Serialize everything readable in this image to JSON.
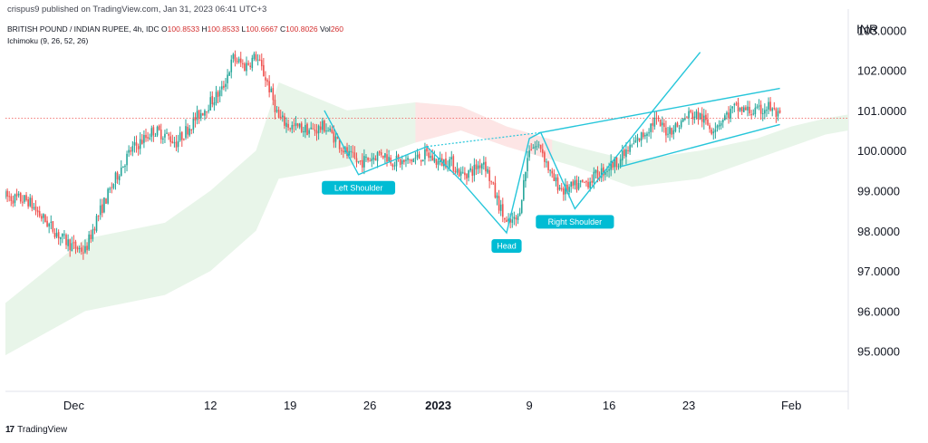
{
  "header": {
    "published": "crispus9 published on TradingView.com, Jan 31, 2023 06:41 UTC+3",
    "symbol": "BRITISH POUND / INDIAN RUPEE, 4h, IDC",
    "ohlc": {
      "o_label": "O",
      "o": "100.8533",
      "h_label": "H",
      "h": "100.8533",
      "l_label": "L",
      "l": "100.6667",
      "c_label": "C",
      "c": "100.8026",
      "vol_label": "Vol",
      "vol": "260"
    },
    "indicator": "Ichimoku (9, 26, 52, 26)",
    "currency": "INR"
  },
  "footer": {
    "brand": "TradingView",
    "logo_text": "17"
  },
  "colors": {
    "up": "#26a69a",
    "down": "#ef5350",
    "cloud_bull": "#e8f5e9",
    "cloud_bear": "#fde5e5",
    "pattern": "#26c6da",
    "label_bg": "#00bcd4",
    "price_line": "#ef5350"
  },
  "chart_data": {
    "type": "candlestick",
    "timeframe": "4h",
    "y_axis": {
      "position": "right",
      "ticks": [
        "103.0000",
        "102.0000",
        "101.0000",
        "100.0000",
        "99.0000",
        "98.0000",
        "97.0000",
        "96.0000",
        "95.0000"
      ],
      "ylim": [
        94.0,
        103.3
      ]
    },
    "x_axis": {
      "ticks": [
        "Dec",
        "12",
        "19",
        "26",
        "2023",
        "9",
        "16",
        "23",
        "Feb"
      ],
      "range": [
        "2022-11-24",
        "2023-02-06"
      ]
    },
    "last_price": 100.8026,
    "annotations": [
      {
        "text": "Left Shoulder",
        "date": "2022-12-25",
        "price": 99.4
      },
      {
        "text": "Head",
        "date": "2023-01-07",
        "price": 97.95
      },
      {
        "text": "Right Shoulder",
        "date": "2023-01-13",
        "price": 98.55
      }
    ],
    "pattern_path": [
      {
        "date": "2022-12-22",
        "price": 101.0
      },
      {
        "date": "2022-12-25",
        "price": 99.4
      },
      {
        "date": "2022-12-31",
        "price": 100.1
      },
      {
        "date": "2023-01-03",
        "price": 99.25
      },
      {
        "date": "2023-01-07",
        "price": 97.95
      },
      {
        "date": "2023-01-09",
        "price": 100.3
      },
      {
        "date": "2023-01-10",
        "price": 100.45
      },
      {
        "date": "2023-01-13",
        "price": 98.55
      },
      {
        "date": "2023-01-20",
        "price": 101.05
      },
      {
        "date": "2023-01-24",
        "price": 102.45
      }
    ],
    "neckline": [
      {
        "date": "2022-12-31",
        "price": 100.1
      },
      {
        "date": "2023-01-10",
        "price": 100.45
      }
    ],
    "channel_upper": [
      {
        "date": "2023-01-10",
        "price": 100.45
      },
      {
        "date": "2023-01-31",
        "price": 101.55
      }
    ],
    "channel_lower": [
      {
        "date": "2023-01-17",
        "price": 99.6
      },
      {
        "date": "2023-01-31",
        "price": 100.65
      }
    ],
    "price_path": [
      {
        "date": "2022-11-24",
        "price": 98.85
      },
      {
        "date": "2022-11-25",
        "price": 98.8
      },
      {
        "date": "2022-11-26",
        "price": 98.75
      },
      {
        "date": "2022-11-27",
        "price": 98.4
      },
      {
        "date": "2022-11-28",
        "price": 98.1
      },
      {
        "date": "2022-11-29",
        "price": 97.8
      },
      {
        "date": "2022-11-30",
        "price": 97.6
      },
      {
        "date": "2022-12-01",
        "price": 97.5
      },
      {
        "date": "2022-12-02",
        "price": 98.3
      },
      {
        "date": "2022-12-03",
        "price": 98.9
      },
      {
        "date": "2022-12-04",
        "price": 99.5
      },
      {
        "date": "2022-12-05",
        "price": 100.0
      },
      {
        "date": "2022-12-06",
        "price": 100.25
      },
      {
        "date": "2022-12-07",
        "price": 100.5
      },
      {
        "date": "2022-12-08",
        "price": 100.4
      },
      {
        "date": "2022-12-09",
        "price": 100.2
      },
      {
        "date": "2022-12-10",
        "price": 100.55
      },
      {
        "date": "2022-12-11",
        "price": 100.9
      },
      {
        "date": "2022-12-12",
        "price": 101.2
      },
      {
        "date": "2022-12-13",
        "price": 101.5
      },
      {
        "date": "2022-12-14",
        "price": 102.3
      },
      {
        "date": "2022-12-15",
        "price": 102.1
      },
      {
        "date": "2022-12-16",
        "price": 102.35
      },
      {
        "date": "2022-12-17",
        "price": 101.7
      },
      {
        "date": "2022-12-18",
        "price": 100.8
      },
      {
        "date": "2022-12-19",
        "price": 100.6
      },
      {
        "date": "2022-12-20",
        "price": 100.55
      },
      {
        "date": "2022-12-21",
        "price": 100.5
      },
      {
        "date": "2022-12-22",
        "price": 100.6
      },
      {
        "date": "2022-12-23",
        "price": 100.3
      },
      {
        "date": "2022-12-24",
        "price": 99.9
      },
      {
        "date": "2022-12-25",
        "price": 99.7
      },
      {
        "date": "2022-12-26",
        "price": 99.8
      },
      {
        "date": "2022-12-27",
        "price": 99.95
      },
      {
        "date": "2022-12-28",
        "price": 99.75
      },
      {
        "date": "2022-12-29",
        "price": 99.7
      },
      {
        "date": "2022-12-30",
        "price": 99.8
      },
      {
        "date": "2022-12-31",
        "price": 99.9
      },
      {
        "date": "2023-01-01",
        "price": 99.7
      },
      {
        "date": "2023-01-02",
        "price": 99.75
      },
      {
        "date": "2023-01-03",
        "price": 99.4
      },
      {
        "date": "2023-01-04",
        "price": 99.5
      },
      {
        "date": "2023-01-05",
        "price": 99.75
      },
      {
        "date": "2023-01-06",
        "price": 98.9
      },
      {
        "date": "2023-01-07",
        "price": 98.15
      },
      {
        "date": "2023-01-08",
        "price": 98.3
      },
      {
        "date": "2023-01-09",
        "price": 100.1
      },
      {
        "date": "2023-01-10",
        "price": 100.1
      },
      {
        "date": "2023-01-11",
        "price": 99.3
      },
      {
        "date": "2023-01-12",
        "price": 99.0
      },
      {
        "date": "2023-01-13",
        "price": 99.1
      },
      {
        "date": "2023-01-14",
        "price": 99.2
      },
      {
        "date": "2023-01-15",
        "price": 99.4
      },
      {
        "date": "2023-01-16",
        "price": 99.6
      },
      {
        "date": "2023-01-17",
        "price": 99.8
      },
      {
        "date": "2023-01-18",
        "price": 100.1
      },
      {
        "date": "2023-01-19",
        "price": 100.4
      },
      {
        "date": "2023-01-20",
        "price": 100.75
      },
      {
        "date": "2023-01-21",
        "price": 100.5
      },
      {
        "date": "2023-01-22",
        "price": 100.6
      },
      {
        "date": "2023-01-23",
        "price": 100.9
      },
      {
        "date": "2023-01-24",
        "price": 100.85
      },
      {
        "date": "2023-01-25",
        "price": 100.55
      },
      {
        "date": "2023-01-26",
        "price": 100.8
      },
      {
        "date": "2023-01-27",
        "price": 101.05
      },
      {
        "date": "2023-01-28",
        "price": 101.0
      },
      {
        "date": "2023-01-29",
        "price": 100.95
      },
      {
        "date": "2023-01-30",
        "price": 101.1
      },
      {
        "date": "2023-01-31",
        "price": 100.8
      }
    ],
    "cloud": {
      "top": [
        {
          "date": "2022-11-24",
          "price": 96.2
        },
        {
          "date": "2022-12-01",
          "price": 97.8
        },
        {
          "date": "2022-12-08",
          "price": 98.2
        },
        {
          "date": "2022-12-12",
          "price": 99.0
        },
        {
          "date": "2022-12-16",
          "price": 100.0
        },
        {
          "date": "2022-12-18",
          "price": 101.7
        },
        {
          "date": "2022-12-24",
          "price": 101.0
        },
        {
          "date": "2022-12-30",
          "price": 101.2
        },
        {
          "date": "2023-01-03",
          "price": 101.1
        },
        {
          "date": "2023-01-07",
          "price": 100.6
        },
        {
          "date": "2023-01-13",
          "price": 100.1
        },
        {
          "date": "2023-01-18",
          "price": 99.75
        },
        {
          "date": "2023-01-24",
          "price": 100.0
        },
        {
          "date": "2023-01-29",
          "price": 100.3
        },
        {
          "date": "2023-02-01",
          "price": 100.6
        },
        {
          "date": "2023-02-04",
          "price": 100.8
        },
        {
          "date": "2023-02-06",
          "price": 100.9
        }
      ],
      "bottom": [
        {
          "date": "2022-11-24",
          "price": 94.9
        },
        {
          "date": "2022-12-01",
          "price": 96.0
        },
        {
          "date": "2022-12-08",
          "price": 96.4
        },
        {
          "date": "2022-12-12",
          "price": 97.0
        },
        {
          "date": "2022-12-16",
          "price": 98.0
        },
        {
          "date": "2022-12-18",
          "price": 99.3
        },
        {
          "date": "2022-12-24",
          "price": 99.6
        },
        {
          "date": "2022-12-30",
          "price": 100.2
        },
        {
          "date": "2023-01-03",
          "price": 100.5
        },
        {
          "date": "2023-01-07",
          "price": 100.1
        },
        {
          "date": "2023-01-13",
          "price": 99.6
        },
        {
          "date": "2023-01-18",
          "price": 99.1
        },
        {
          "date": "2023-01-24",
          "price": 99.3
        },
        {
          "date": "2023-01-29",
          "price": 99.8
        },
        {
          "date": "2023-02-01",
          "price": 100.1
        },
        {
          "date": "2023-02-04",
          "price": 100.4
        },
        {
          "date": "2023-02-06",
          "price": 100.5
        }
      ],
      "bearish_span": [
        "2022-12-30",
        "2023-01-11"
      ]
    }
  }
}
